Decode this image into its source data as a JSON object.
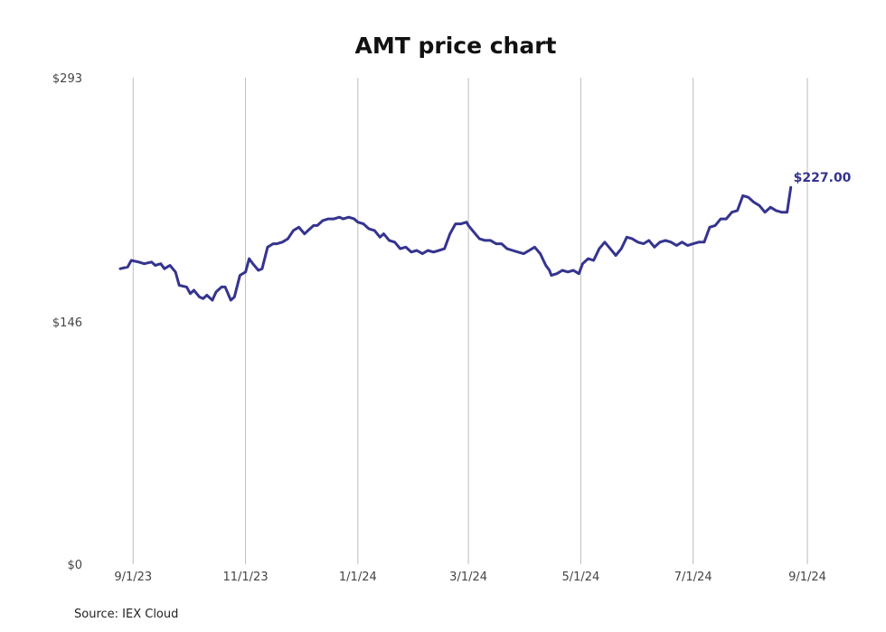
{
  "chart_data": {
    "type": "line",
    "title": "AMT price chart",
    "xlabel": "",
    "ylabel": "",
    "ylim": [
      0,
      293
    ],
    "y_ticks": [
      {
        "value": 0,
        "label": "$0"
      },
      {
        "value": 146,
        "label": "$146"
      },
      {
        "value": 293,
        "label": "$293"
      }
    ],
    "x_ticks": [
      {
        "date": "2023-09-01",
        "label": "9/1/23"
      },
      {
        "date": "2023-11-01",
        "label": "11/1/23"
      },
      {
        "date": "2024-01-01",
        "label": "1/1/24"
      },
      {
        "date": "2024-03-01",
        "label": "3/1/24"
      },
      {
        "date": "2024-05-01",
        "label": "5/1/24"
      },
      {
        "date": "2024-07-01",
        "label": "7/1/24"
      },
      {
        "date": "2024-09-01",
        "label": "9/1/24"
      }
    ],
    "xlim": [
      "2023-08-25",
      "2024-09-01"
    ],
    "grid": "vertical",
    "line_color": "#35348f",
    "last_value_label": "$227.00",
    "series": [
      {
        "x": [
          "2023-08-25",
          "2023-08-29",
          "2023-08-31",
          "2023-09-04",
          "2023-09-07",
          "2023-09-11",
          "2023-09-13",
          "2023-09-16",
          "2023-09-18",
          "2023-09-21",
          "2023-09-24",
          "2023-09-26",
          "2023-09-30",
          "2023-10-02",
          "2023-10-04",
          "2023-10-07",
          "2023-10-09",
          "2023-10-11",
          "2023-10-14",
          "2023-10-16",
          "2023-10-19",
          "2023-10-21",
          "2023-10-24",
          "2023-10-26",
          "2023-10-29",
          "2023-11-01",
          "2023-11-03",
          "2023-11-05",
          "2023-11-08",
          "2023-11-10",
          "2023-11-13",
          "2023-11-16",
          "2023-11-18",
          "2023-11-21",
          "2023-11-24",
          "2023-11-27",
          "2023-11-30",
          "2023-12-03",
          "2023-12-05",
          "2023-12-08",
          "2023-12-10",
          "2023-12-13",
          "2023-12-16",
          "2023-12-19",
          "2023-12-22",
          "2023-12-24",
          "2023-12-27",
          "2023-12-30",
          "2024-01-01",
          "2024-01-04",
          "2024-01-07",
          "2024-01-10",
          "2024-01-13",
          "2024-01-15",
          "2024-01-18",
          "2024-01-21",
          "2024-01-24",
          "2024-01-27",
          "2024-01-30",
          "2024-02-02",
          "2024-02-05",
          "2024-02-08",
          "2024-02-11",
          "2024-02-14",
          "2024-02-17",
          "2024-02-20",
          "2024-02-23",
          "2024-02-26",
          "2024-02-29",
          "2024-03-01",
          "2024-03-04",
          "2024-03-07",
          "2024-03-10",
          "2024-03-13",
          "2024-03-16",
          "2024-03-19",
          "2024-03-22",
          "2024-03-25",
          "2024-03-28",
          "2024-03-31",
          "2024-04-03",
          "2024-04-06",
          "2024-04-09",
          "2024-04-12",
          "2024-04-14",
          "2024-04-15",
          "2024-04-18",
          "2024-04-21",
          "2024-04-24",
          "2024-04-27",
          "2024-04-30",
          "2024-05-02",
          "2024-05-05",
          "2024-05-08",
          "2024-05-11",
          "2024-05-14",
          "2024-05-17",
          "2024-05-20",
          "2024-05-23",
          "2024-05-26",
          "2024-05-29",
          "2024-06-01",
          "2024-06-04",
          "2024-06-07",
          "2024-06-10",
          "2024-06-13",
          "2024-06-16",
          "2024-06-19",
          "2024-06-22",
          "2024-06-25",
          "2024-06-28",
          "2024-07-01",
          "2024-07-04",
          "2024-07-07",
          "2024-07-10",
          "2024-07-13",
          "2024-07-16",
          "2024-07-19",
          "2024-07-22",
          "2024-07-25",
          "2024-07-28",
          "2024-07-31",
          "2024-08-03",
          "2024-08-06",
          "2024-08-09",
          "2024-08-12",
          "2024-08-15",
          "2024-08-18",
          "2024-08-21",
          "2024-08-23"
        ],
        "values": [
          178,
          179,
          183,
          182,
          181,
          182,
          180,
          181,
          178,
          180,
          176,
          168,
          167,
          163,
          165,
          161,
          160,
          162,
          159,
          164,
          167,
          167,
          159,
          161,
          174,
          176,
          184,
          181,
          177,
          178,
          191,
          193,
          193,
          194,
          196,
          201,
          203,
          199,
          201,
          204,
          204,
          207,
          208,
          208,
          209,
          208,
          209,
          208,
          206,
          205,
          202,
          201,
          197,
          199,
          195,
          194,
          190,
          191,
          188,
          189,
          187,
          189,
          188,
          189,
          190,
          199,
          205,
          205,
          206,
          204,
          200,
          196,
          195,
          195,
          193,
          193,
          190,
          189,
          188,
          187,
          189,
          191,
          187,
          180,
          177,
          174,
          175,
          177,
          176,
          177,
          175,
          181,
          184,
          183,
          190,
          194,
          190,
          186,
          190,
          197,
          196,
          194,
          193,
          195,
          191,
          194,
          195,
          194,
          192,
          194,
          192,
          193,
          194,
          194,
          203,
          204,
          208,
          208,
          212,
          213,
          222,
          221,
          218,
          216,
          212,
          215,
          213,
          212,
          212,
          227
        ]
      }
    ]
  },
  "source_text": "Source: IEX Cloud"
}
